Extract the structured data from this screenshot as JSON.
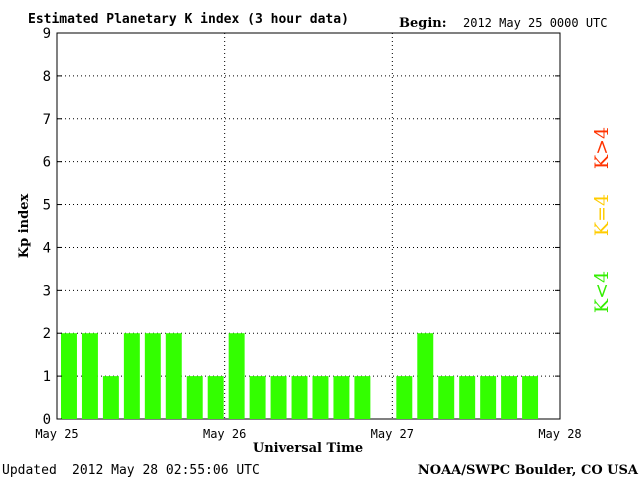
{
  "header": {
    "begin_label": "Begin:",
    "begin_value": "2012 May 25 0000 UTC"
  },
  "footer": {
    "updated_label": "Updated",
    "updated_value": "2012 May 28 02:55:06 UTC",
    "source": "NOAA/SWPC Boulder, CO USA"
  },
  "legend": [
    {
      "label": "K>4",
      "color": "#ff3300"
    },
    {
      "label": "K=4",
      "color": "#ffcc00"
    },
    {
      "label": "K<4",
      "color": "#33ee00"
    }
  ],
  "chart_data": {
    "type": "bar",
    "title": "Estimated Planetary K index (3 hour data)",
    "xlabel": "Universal Time",
    "ylabel": "Kp index",
    "ylim": [
      0,
      9
    ],
    "y_ticks": [
      "0",
      "1",
      "2",
      "3",
      "4",
      "5",
      "6",
      "7",
      "8",
      "9"
    ],
    "x_ticks": [
      "May 25",
      "May 26",
      "May 27",
      "May 28"
    ],
    "bar_color": "#33ff00",
    "grid": "dotted",
    "bars_per_day": 8,
    "values": [
      2,
      2,
      1,
      2,
      2,
      2,
      1,
      1,
      2,
      1,
      1,
      1,
      1,
      1,
      1,
      null,
      1,
      2,
      1,
      1,
      1,
      1,
      1,
      null
    ]
  }
}
